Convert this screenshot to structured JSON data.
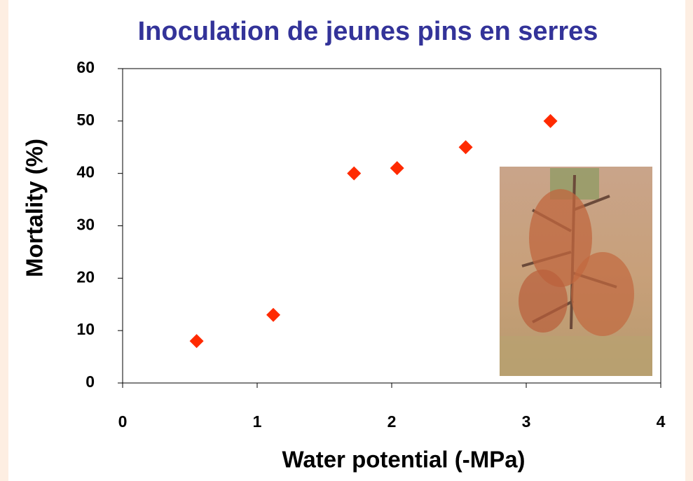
{
  "chart_data": {
    "type": "scatter",
    "title": "Inoculation de jeunes pins en serres",
    "x_label": "Water potential (-MPa)",
    "y_label": "Mortality (%)",
    "x": [
      0.55,
      1.12,
      1.72,
      2.04,
      2.55,
      3.18
    ],
    "values": [
      8,
      13,
      40,
      41,
      45,
      50
    ],
    "color": "#ff2a00",
    "marker": "diamond",
    "xlim": [
      0,
      4
    ],
    "ylim": [
      0,
      60
    ],
    "xticks": [
      0,
      1,
      2,
      3,
      4
    ],
    "yticks": [
      0,
      10,
      20,
      30,
      40,
      50,
      60
    ]
  }
}
